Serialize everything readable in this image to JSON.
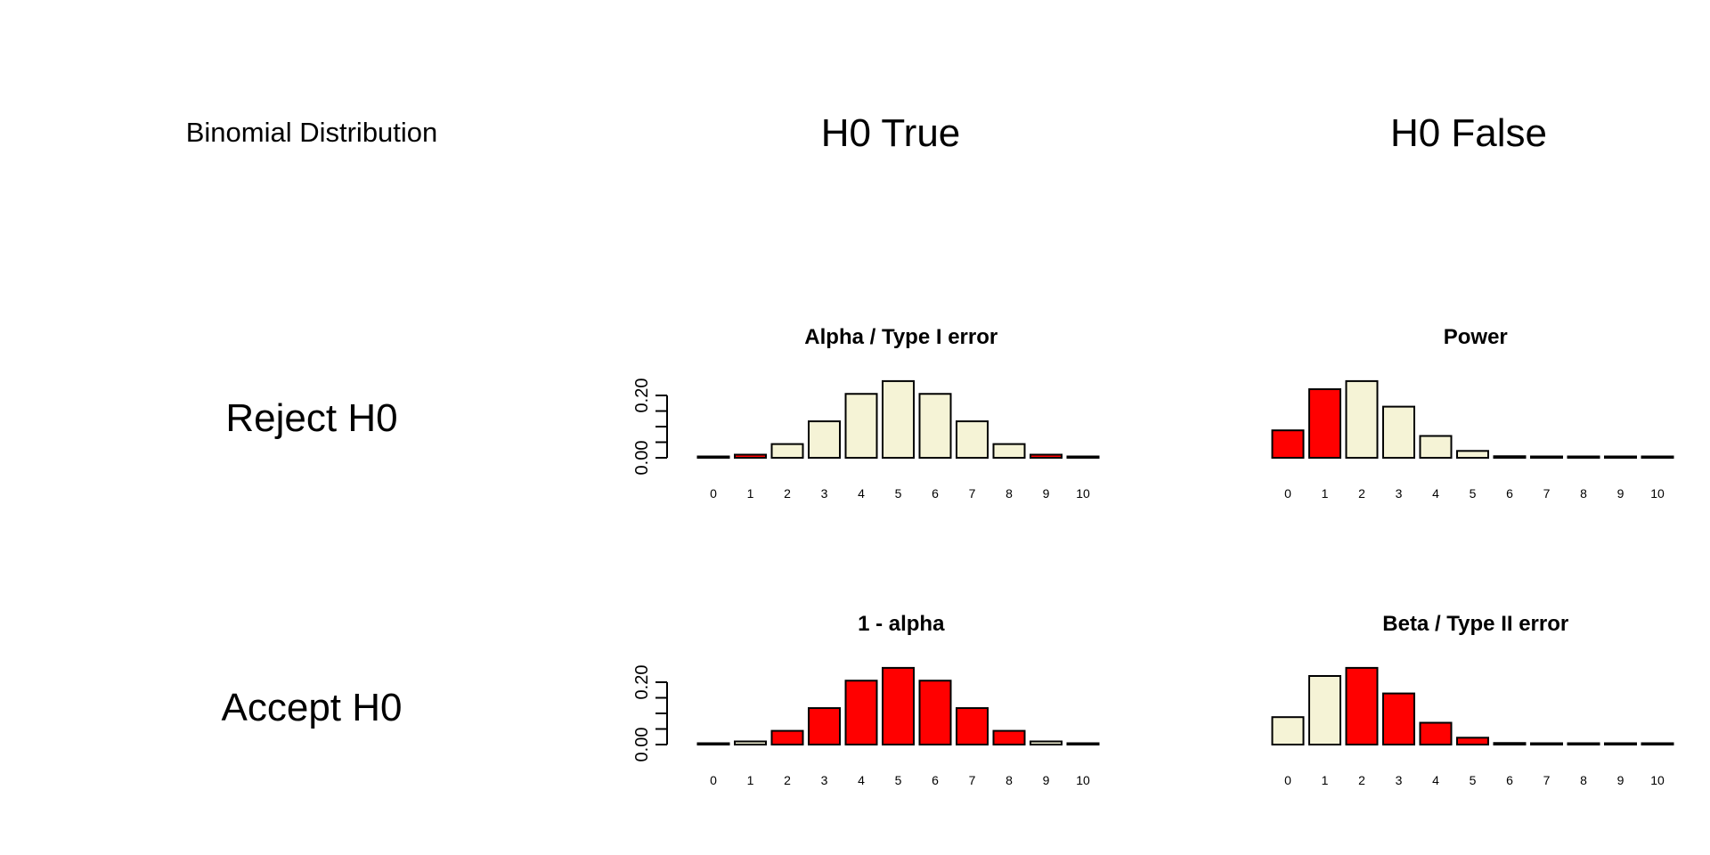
{
  "figure": {
    "main_title": "Binomial Distribution",
    "col_labels": [
      "H0 True",
      "H0 False"
    ],
    "row_labels": [
      "Reject H0",
      "Accept H0"
    ]
  },
  "colors": {
    "highlight": "#ff0000",
    "base": "#f5f3d6",
    "stroke": "#000000"
  },
  "chart_data": [
    {
      "type": "bar",
      "title": "Alpha / Type I error",
      "categories": [
        "0",
        "1",
        "2",
        "3",
        "4",
        "5",
        "6",
        "7",
        "8",
        "9",
        "10"
      ],
      "values": [
        0.001,
        0.01,
        0.044,
        0.117,
        0.205,
        0.246,
        0.205,
        0.117,
        0.044,
        0.01,
        0.001
      ],
      "highlighted": [
        1,
        9
      ],
      "yticks": [
        "0.00",
        "0.20"
      ],
      "ylim": [
        0,
        0.25
      ],
      "show_yaxis": true
    },
    {
      "type": "bar",
      "title": "Power",
      "categories": [
        "0",
        "1",
        "2",
        "3",
        "4",
        "5",
        "6",
        "7",
        "8",
        "9",
        "10"
      ],
      "values": [
        0.088,
        0.22,
        0.246,
        0.164,
        0.07,
        0.022,
        0.005,
        0.001,
        0.0,
        0.0,
        0.0
      ],
      "highlighted": [
        0,
        1,
        6
      ],
      "yticks": [],
      "ylim": [
        0,
        0.25
      ],
      "show_yaxis": false
    },
    {
      "type": "bar",
      "title": "1 - alpha",
      "categories": [
        "0",
        "1",
        "2",
        "3",
        "4",
        "5",
        "6",
        "7",
        "8",
        "9",
        "10"
      ],
      "values": [
        0.001,
        0.01,
        0.044,
        0.117,
        0.205,
        0.246,
        0.205,
        0.117,
        0.044,
        0.01,
        0.001
      ],
      "highlighted": [
        2,
        3,
        4,
        5,
        6,
        7,
        8
      ],
      "yticks": [
        "0.00",
        "0.20"
      ],
      "ylim": [
        0,
        0.25
      ],
      "show_yaxis": true
    },
    {
      "type": "bar",
      "title": "Beta / Type II error",
      "categories": [
        "0",
        "1",
        "2",
        "3",
        "4",
        "5",
        "6",
        "7",
        "8",
        "9",
        "10"
      ],
      "values": [
        0.088,
        0.22,
        0.246,
        0.164,
        0.07,
        0.022,
        0.005,
        0.001,
        0.0,
        0.0,
        0.0
      ],
      "highlighted": [
        2,
        3,
        4,
        5,
        6
      ],
      "yticks": [],
      "ylim": [
        0,
        0.25
      ],
      "show_yaxis": false
    }
  ]
}
